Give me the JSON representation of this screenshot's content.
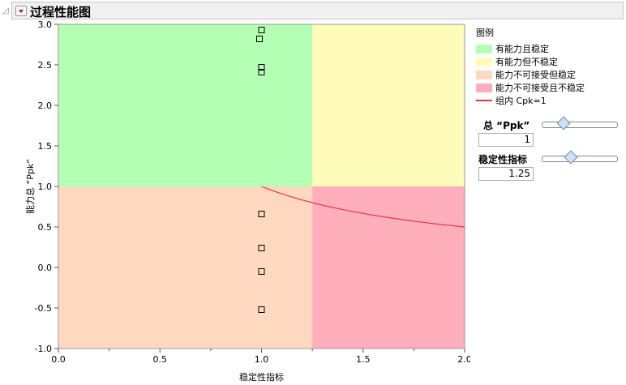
{
  "header": {
    "title": "过程性能图"
  },
  "legend": {
    "title": "图例",
    "items": [
      {
        "label": "有能力且稳定",
        "color": "#b3ffb3"
      },
      {
        "label": "有能力但不稳定",
        "color": "#fffbb9"
      },
      {
        "label": "能力不可接受但稳定",
        "color": "#ffd9bf"
      },
      {
        "label": "能力不可接受且不稳定",
        "color": "#ffaebb"
      },
      {
        "label": "组内 Cpk=1",
        "color": "#ee3344"
      }
    ]
  },
  "controls": {
    "ppk_label": "总 “Ppk”",
    "ppk_value": "1",
    "stability_label": "稳定性指标",
    "stability_value": "1.25"
  },
  "chart_data": {
    "type": "scatter",
    "xlabel": "稳定性指标",
    "ylabel": "能力总 “Ppk”",
    "xlim": [
      0,
      2
    ],
    "ylim": [
      -1,
      3
    ],
    "xticks": [
      "0.0",
      "0.5",
      "1.0",
      "1.5",
      "2.0"
    ],
    "yticks": [
      "-1.0",
      "-0.5",
      "0.0",
      "0.5",
      "1.0",
      "1.5",
      "2.0",
      "2.5",
      "3.0"
    ],
    "thresholds": {
      "ppk": 1,
      "stability": 1.25
    },
    "points": [
      {
        "x": 1.0,
        "y": 2.93
      },
      {
        "x": 0.99,
        "y": 2.82
      },
      {
        "x": 1.0,
        "y": 2.47
      },
      {
        "x": 1.0,
        "y": 2.41
      },
      {
        "x": 1.0,
        "y": 0.66
      },
      {
        "x": 1.0,
        "y": 0.24
      },
      {
        "x": 1.0,
        "y": -0.05
      },
      {
        "x": 1.0,
        "y": -0.52
      }
    ],
    "curve": {
      "name": "组内 Cpk=1",
      "formula": "y=1/x",
      "x_range": [
        1,
        2
      ]
    }
  }
}
